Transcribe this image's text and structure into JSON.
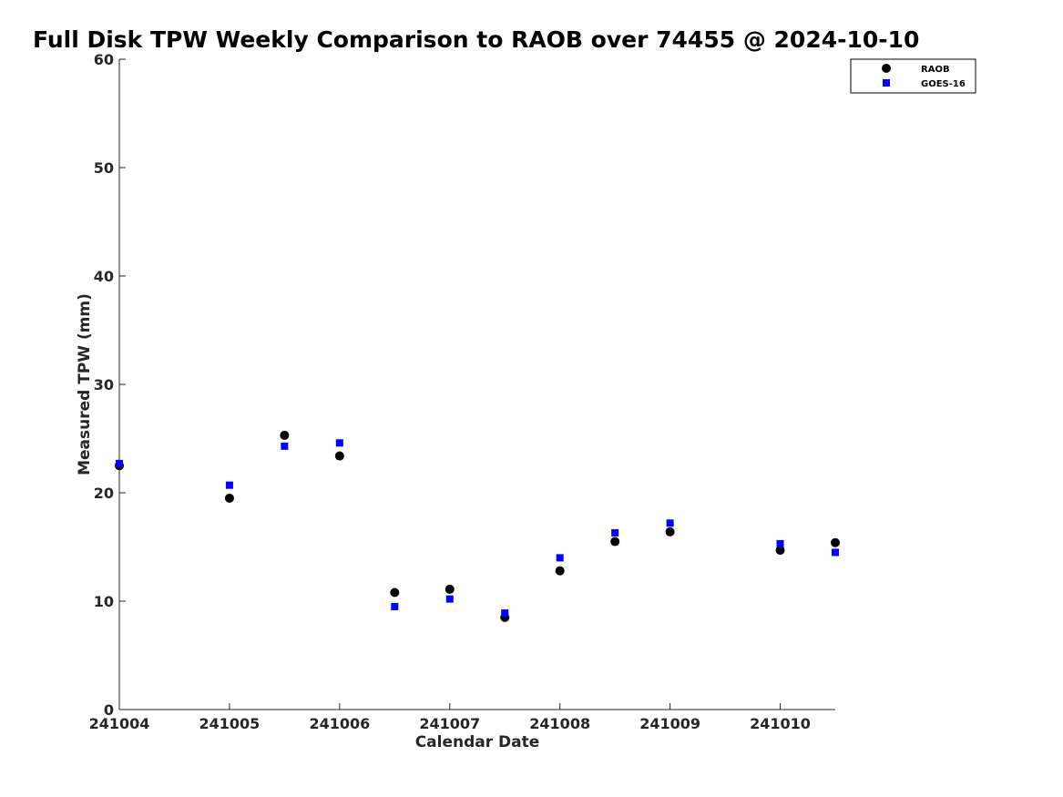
{
  "chart_data": {
    "type": "scatter",
    "title": "Full Disk TPW Weekly Comparison to RAOB over 74455 @ 2024-10-10",
    "xlabel": "Calendar Date",
    "ylabel": "Measured TPW (mm)",
    "xlim": [
      241004,
      241010.5
    ],
    "ylim": [
      0,
      60
    ],
    "xticks": [
      241004,
      241005,
      241006,
      241007,
      241008,
      241009,
      241010
    ],
    "xtick_labels": [
      "241004",
      "241005",
      "241006",
      "241007",
      "241008",
      "241009",
      "241010"
    ],
    "yticks": [
      0,
      10,
      20,
      30,
      40,
      50,
      60
    ],
    "ytick_labels": [
      "0",
      "10",
      "20",
      "30",
      "40",
      "50",
      "60"
    ],
    "grid": false,
    "legend_position": "top-right",
    "series": [
      {
        "name": "RAOB",
        "marker": "circle",
        "color": "#000000",
        "points": [
          {
            "x": 241004.0,
            "y": 22.5
          },
          {
            "x": 241005.0,
            "y": 19.5
          },
          {
            "x": 241005.5,
            "y": 25.3
          },
          {
            "x": 241006.0,
            "y": 23.4
          },
          {
            "x": 241006.5,
            "y": 10.8
          },
          {
            "x": 241007.0,
            "y": 11.1
          },
          {
            "x": 241007.5,
            "y": 8.5
          },
          {
            "x": 241008.0,
            "y": 12.8
          },
          {
            "x": 241008.5,
            "y": 15.5
          },
          {
            "x": 241009.0,
            "y": 16.4
          },
          {
            "x": 241010.0,
            "y": 14.7
          },
          {
            "x": 241010.5,
            "y": 15.4
          }
        ]
      },
      {
        "name": "GOES-16",
        "marker": "square",
        "color": "#0000ff",
        "points": [
          {
            "x": 241004.0,
            "y": 22.7
          },
          {
            "x": 241005.0,
            "y": 20.7
          },
          {
            "x": 241005.5,
            "y": 24.3
          },
          {
            "x": 241006.0,
            "y": 24.6
          },
          {
            "x": 241006.5,
            "y": 9.5
          },
          {
            "x": 241007.0,
            "y": 10.2
          },
          {
            "x": 241007.5,
            "y": 8.9
          },
          {
            "x": 241008.0,
            "y": 14.0
          },
          {
            "x": 241008.5,
            "y": 16.3
          },
          {
            "x": 241009.0,
            "y": 17.2
          },
          {
            "x": 241010.0,
            "y": 15.3
          },
          {
            "x": 241010.5,
            "y": 14.5
          }
        ]
      }
    ]
  }
}
